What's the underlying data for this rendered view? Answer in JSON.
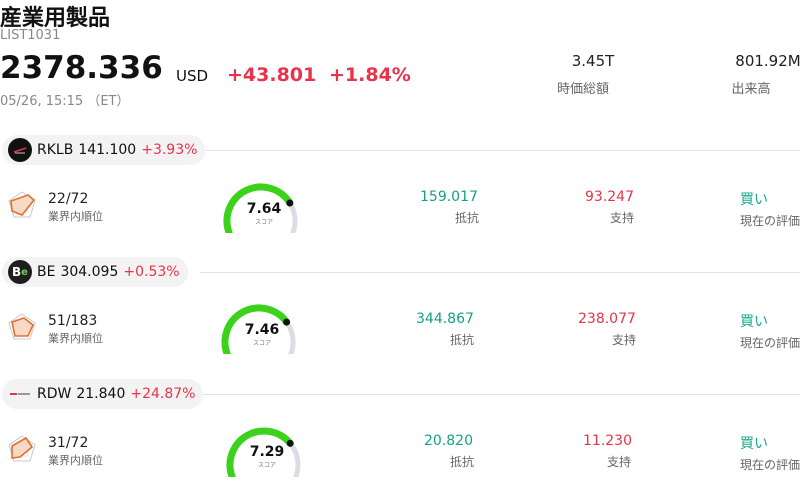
{
  "header": {
    "title": "産業用製品",
    "code": "LIST1031",
    "price": "2378.336",
    "currency": "USD",
    "change_abs": "+43.801",
    "change_pct": "+1.84%",
    "timestamp": "05/26, 15:15 （ET）",
    "market_cap": "3.45T",
    "market_cap_label": "時価総額",
    "volume": "801.92M",
    "volume_label": "出来高"
  },
  "colors": {
    "up_red": "#e8344a",
    "resist_green": "#16a085",
    "gauge_green": "#3cd21c",
    "gauge_track": "#dcdce4"
  },
  "stocks": [
    {
      "ticker": "RKLB",
      "price": "141.100",
      "change_pct": "+3.93%",
      "rank": "22/72",
      "rank_label": "業界内順位",
      "score": "7.64",
      "score_fraction": 0.764,
      "score_label": "スコア",
      "resistance": "159.017",
      "resistance_label": "抵抗",
      "support": "93.247",
      "support_label": "支持",
      "rating": "買い",
      "rating_label": "現在の評価",
      "logo_icon": "rocket-lab-logo"
    },
    {
      "ticker": "BE",
      "price": "304.095",
      "change_pct": "+0.53%",
      "rank": "51/183",
      "rank_label": "業界内順位",
      "score": "7.46",
      "score_fraction": 0.746,
      "score_label": "スコア",
      "resistance": "344.867",
      "resistance_label": "抵抗",
      "support": "238.077",
      "support_label": "支持",
      "rating": "買い",
      "rating_label": "現在の評価",
      "logo_icon": "bloom-energy-logo",
      "logo_text": "Be"
    },
    {
      "ticker": "RDW",
      "price": "21.840",
      "change_pct": "+24.87%",
      "rank": "31/72",
      "rank_label": "業界内順位",
      "score": "7.29",
      "score_fraction": 0.729,
      "score_label": "スコア",
      "resistance": "20.820",
      "resistance_label": "抵抗",
      "support": "11.230",
      "support_label": "支持",
      "rating": "買い",
      "rating_label": "現在の評価",
      "logo_icon": "redwire-logo"
    }
  ]
}
